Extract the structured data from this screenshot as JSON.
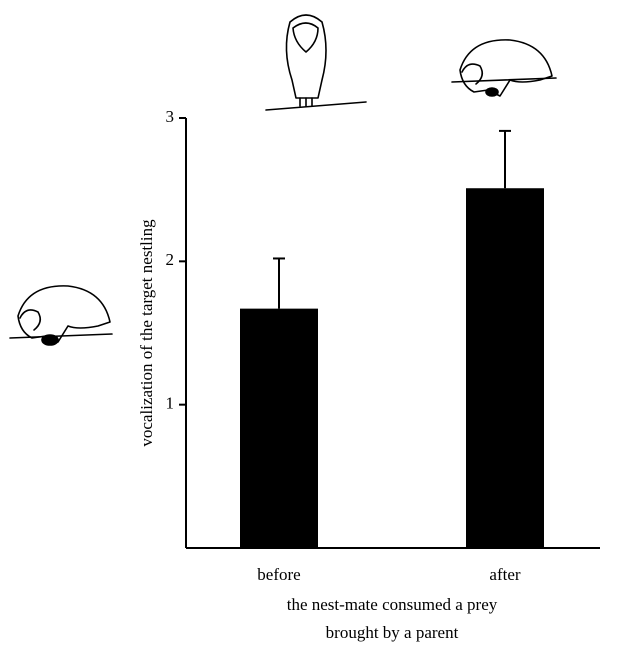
{
  "chart_data": {
    "type": "bar",
    "categories": [
      "before",
      "after"
    ],
    "values": [
      1.67,
      2.51
    ],
    "errors": [
      0.35,
      0.4
    ],
    "color": "#000000",
    "ylabel": "vocalization of the target nestling",
    "xlabel": [
      "the nest-mate consumed a prey",
      "brought by a parent"
    ],
    "ylim": [
      0,
      3
    ],
    "yticks": [
      1,
      2,
      3
    ],
    "grid": false
  }
}
